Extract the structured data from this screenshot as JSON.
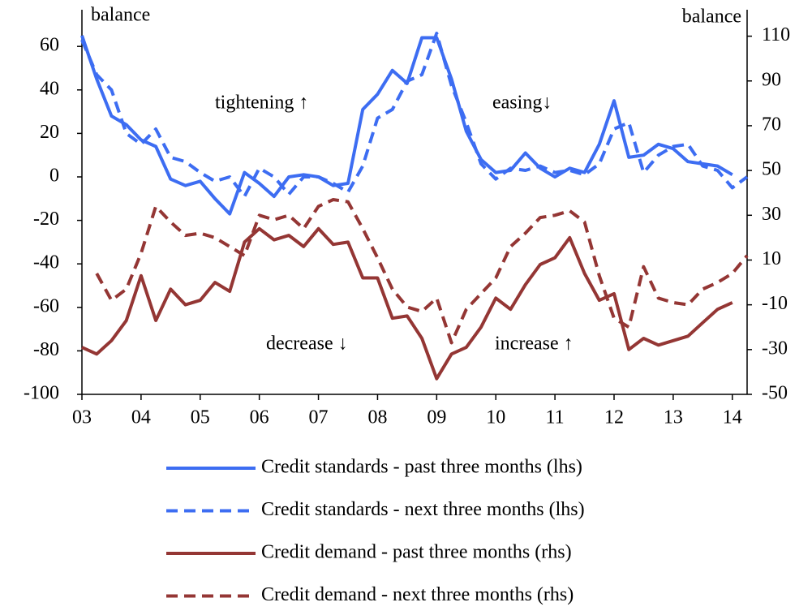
{
  "chart_data": {
    "type": "line",
    "y_axis_label": "balance",
    "y2_axis_label": "balance",
    "annotations": [
      "tightening ↑",
      "easing↓",
      "decrease ↓",
      "increase ↑"
    ],
    "x": [
      2003,
      2003.25,
      2003.5,
      2003.75,
      2004,
      2004.25,
      2004.5,
      2004.75,
      2005,
      2005.25,
      2005.5,
      2005.75,
      2006,
      2006.25,
      2006.5,
      2006.75,
      2007,
      2007.25,
      2007.5,
      2007.75,
      2008,
      2008.25,
      2008.5,
      2008.75,
      2009,
      2009.25,
      2009.5,
      2009.75,
      2010,
      2010.25,
      2010.5,
      2010.75,
      2011,
      2011.25,
      2011.5,
      2011.75,
      2012,
      2012.25,
      2012.5,
      2012.75,
      2013,
      2013.25,
      2013.5,
      2013.75,
      2014,
      2014.25
    ],
    "xlim": [
      2003,
      2014.25
    ],
    "xticks": [
      {
        "value": 2003,
        "label": "03"
      },
      {
        "value": 2004,
        "label": "04"
      },
      {
        "value": 2005,
        "label": "05"
      },
      {
        "value": 2006,
        "label": "06"
      },
      {
        "value": 2007,
        "label": "07"
      },
      {
        "value": 2008,
        "label": "08"
      },
      {
        "value": 2009,
        "label": "09"
      },
      {
        "value": 2010,
        "label": "10"
      },
      {
        "value": 2011,
        "label": "11"
      },
      {
        "value": 2012,
        "label": "12"
      },
      {
        "value": 2013,
        "label": "13"
      },
      {
        "value": 2014,
        "label": "14"
      }
    ],
    "ylim": [
      -100,
      75
    ],
    "yticks": [
      -100,
      -80,
      -60,
      -40,
      -20,
      0,
      20,
      40,
      60
    ],
    "y2lim": [
      -50,
      120
    ],
    "y2ticks": [
      -50,
      -30,
      -10,
      10,
      30,
      50,
      70,
      90,
      110
    ],
    "legend": "bottom",
    "series": [
      {
        "name": "Credit standards - past three months (lhs)",
        "color": "#3d6df2",
        "dashed": false,
        "values": [
          65,
          45,
          28,
          24,
          17,
          14,
          -1,
          -4,
          -2,
          -10,
          -17,
          2,
          -3,
          -9,
          0,
          1,
          0,
          -4,
          -3,
          31,
          38,
          49,
          43,
          64,
          64,
          45,
          21,
          8,
          2,
          3,
          11,
          4,
          0,
          4,
          2,
          15,
          35,
          9,
          10,
          15,
          13,
          7,
          6,
          5,
          1,
          null
        ]
      },
      {
        "name": "Credit standards - next three months (lhs)",
        "color": "#3d6df2",
        "dashed": true,
        "values": [
          63,
          47,
          40,
          20,
          15,
          22,
          9,
          7,
          2,
          -2,
          0,
          -9,
          4,
          0,
          -8,
          0,
          0,
          -3,
          -7,
          5,
          27,
          31,
          44,
          47,
          66,
          42,
          25,
          6,
          -1,
          4,
          3,
          5,
          2,
          3,
          1,
          6,
          22,
          25,
          2,
          10,
          14,
          15,
          5,
          3,
          -5,
          0
        ]
      },
      {
        "name": "Credit demand - past three months (rhs)",
        "color": "#943634",
        "dashed": false,
        "axis": "y2",
        "values": [
          -29,
          -32,
          -26,
          -17,
          3,
          -17,
          -3,
          -10,
          -8,
          0,
          -4,
          18,
          24,
          19,
          21,
          16,
          24,
          17,
          18,
          2,
          2,
          -16,
          -15,
          -25,
          -43,
          -32,
          -29,
          -20,
          -7,
          -12,
          -1,
          8,
          11,
          20,
          4,
          -8,
          -5,
          -30,
          -25,
          -28,
          -26,
          -24,
          -18,
          -12,
          -9,
          null
        ]
      },
      {
        "name": "Credit demand - next three months (rhs)",
        "color": "#943634",
        "dashed": true,
        "axis": "y2",
        "values": [
          null,
          4,
          -8,
          -3,
          13,
          34,
          27,
          21,
          22,
          20,
          16,
          12,
          30,
          28,
          30,
          24,
          34,
          37,
          36,
          24,
          11,
          -3,
          -11,
          -13,
          -7,
          -27,
          -12,
          -5,
          2,
          16,
          22,
          29,
          30,
          32,
          27,
          3,
          -16,
          -20,
          7,
          -7,
          -9,
          -10,
          -3,
          0,
          4,
          12
        ]
      }
    ]
  }
}
